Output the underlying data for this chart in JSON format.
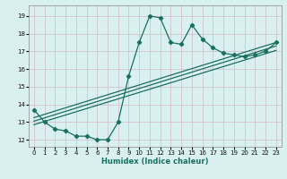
{
  "xlabel": "Humidex (Indice chaleur)",
  "background_color": "#d8f0f0",
  "grid_color": "#d4b8c8",
  "line_color": "#1a7060",
  "x_data": [
    0,
    1,
    2,
    3,
    4,
    5,
    6,
    7,
    8,
    9,
    10,
    11,
    12,
    13,
    14,
    15,
    16,
    17,
    18,
    19,
    20,
    21,
    22,
    23
  ],
  "y_main": [
    13.7,
    13.0,
    12.6,
    12.5,
    12.2,
    12.2,
    12.0,
    12.0,
    13.0,
    15.6,
    17.5,
    19.0,
    18.9,
    17.5,
    17.4,
    18.5,
    17.7,
    17.2,
    16.9,
    16.8,
    16.7,
    16.8,
    17.0,
    17.5
  ],
  "reg_lines": [
    {
      "x0": 0,
      "y0": 12.85,
      "x1": 23,
      "y1": 17.05
    },
    {
      "x0": 0,
      "y0": 13.05,
      "x1": 23,
      "y1": 17.3
    },
    {
      "x0": 0,
      "y0": 13.25,
      "x1": 23,
      "y1": 17.5
    }
  ],
  "xlim": [
    -0.5,
    23.5
  ],
  "ylim": [
    11.6,
    19.6
  ],
  "yticks": [
    12,
    13,
    14,
    15,
    16,
    17,
    18,
    19
  ],
  "xticks": [
    0,
    1,
    2,
    3,
    4,
    5,
    6,
    7,
    8,
    9,
    10,
    11,
    12,
    13,
    14,
    15,
    16,
    17,
    18,
    19,
    20,
    21,
    22,
    23
  ],
  "marker_size": 2.2,
  "line_width": 0.9,
  "tick_fontsize": 5.0,
  "xlabel_fontsize": 6.0
}
